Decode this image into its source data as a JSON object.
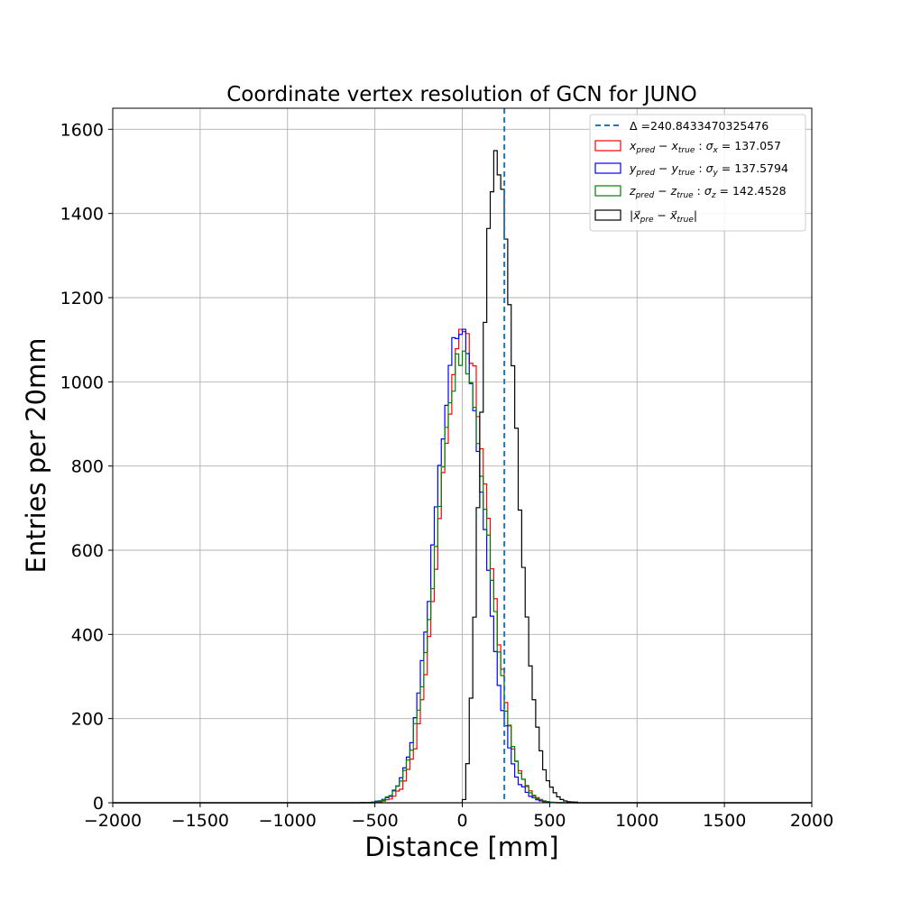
{
  "chart_data": {
    "type": "histogram",
    "title": "Coordinate vertex resolution of GCN for JUNO",
    "xlabel": "Distance [mm]",
    "ylabel": "Entries per 20mm",
    "xlim": [
      -2000,
      2000
    ],
    "ylim": [
      0,
      1650
    ],
    "xticks": [
      -2000,
      -1500,
      -1000,
      -500,
      0,
      500,
      1000,
      1500,
      2000
    ],
    "xtick_labels": [
      "−2000",
      "−1500",
      "−1000",
      "−500",
      "0",
      "500",
      "1000",
      "1500",
      "2000"
    ],
    "yticks": [
      0,
      200,
      400,
      600,
      800,
      1000,
      1200,
      1400,
      1600
    ],
    "ytick_labels": [
      "0",
      "200",
      "400",
      "600",
      "800",
      "1000",
      "1200",
      "1400",
      "1600"
    ],
    "grid": true,
    "legend_position": "top-right",
    "bin_width": 20,
    "vline": {
      "x": 240.8433470325476,
      "label": "Δ =240.8433470325476",
      "color": "#1f77b4",
      "style": "dashed"
    },
    "series": [
      {
        "name": "x_pred − x_true :  σx = 137.057",
        "label_parts": {
          "a": "x",
          "a_sub": "pred",
          "b": "x",
          "b_sub": "true",
          "sigma_sub": "x",
          "sigma_val": "137.057"
        },
        "color": "#ff0000",
        "model": {
          "kind": "gauss",
          "mu": 10,
          "sigma": 137.057,
          "amp": 1115
        }
      },
      {
        "name": "y_pred − y_true :  σy = 137.5794",
        "label_parts": {
          "a": "y",
          "a_sub": "pred",
          "b": "y",
          "b_sub": "true",
          "sigma_sub": "y",
          "sigma_val": "137.5794"
        },
        "color": "#0000ff",
        "model": {
          "kind": "gauss",
          "mu": -15,
          "sigma": 137.5794,
          "amp": 1115
        }
      },
      {
        "name": "z_pred − z_true :  σz = 142.4528",
        "label_parts": {
          "a": "z",
          "a_sub": "pred",
          "b": "z",
          "b_sub": "true",
          "sigma_sub": "z",
          "sigma_val": "142.4528"
        },
        "color": "#008000",
        "model": {
          "kind": "gauss",
          "mu": 0,
          "sigma": 142.4528,
          "amp": 1070
        }
      },
      {
        "name": "|x_pre − x_true|",
        "label_parts": {
          "vec": true,
          "a": "x",
          "a_sub": "pre",
          "b": "x",
          "b_sub": "true"
        },
        "color": "#000000",
        "model": {
          "kind": "maxwell",
          "s": 140,
          "amp": 1530
        }
      }
    ]
  }
}
